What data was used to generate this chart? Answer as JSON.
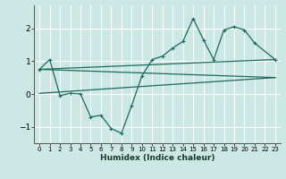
{
  "xlabel": "Humidex (Indice chaleur)",
  "ylabel": "",
  "bg_color": "#cce8e4",
  "grid_color": "#ffffff",
  "line_color": "#1a6b5a",
  "xlim": [
    -0.5,
    23.5
  ],
  "ylim": [
    -1.5,
    2.7
  ],
  "xticks": [
    0,
    1,
    2,
    3,
    4,
    5,
    6,
    7,
    8,
    9,
    10,
    11,
    12,
    13,
    14,
    15,
    16,
    17,
    18,
    19,
    20,
    21,
    22,
    23
  ],
  "yticks": [
    -1,
    0,
    1,
    2
  ],
  "series1_x": [
    0,
    1,
    2,
    3,
    4,
    5,
    6,
    7,
    8,
    9,
    10,
    11,
    12,
    13,
    14,
    15,
    16,
    17,
    18,
    19,
    20,
    21,
    23
  ],
  "series1_y": [
    0.75,
    1.05,
    -0.05,
    0.02,
    0.0,
    -0.7,
    -0.65,
    -1.05,
    -1.2,
    -0.35,
    0.55,
    1.05,
    1.15,
    1.4,
    1.6,
    2.3,
    1.65,
    1.05,
    1.95,
    2.05,
    1.95,
    1.55,
    1.05
  ],
  "line2_x": [
    0,
    23
  ],
  "line2_y": [
    0.75,
    1.05
  ],
  "line3_x": [
    0,
    23
  ],
  "line3_y": [
    0.02,
    0.5
  ],
  "line4_x": [
    0,
    23
  ],
  "line4_y": [
    0.75,
    0.5
  ]
}
